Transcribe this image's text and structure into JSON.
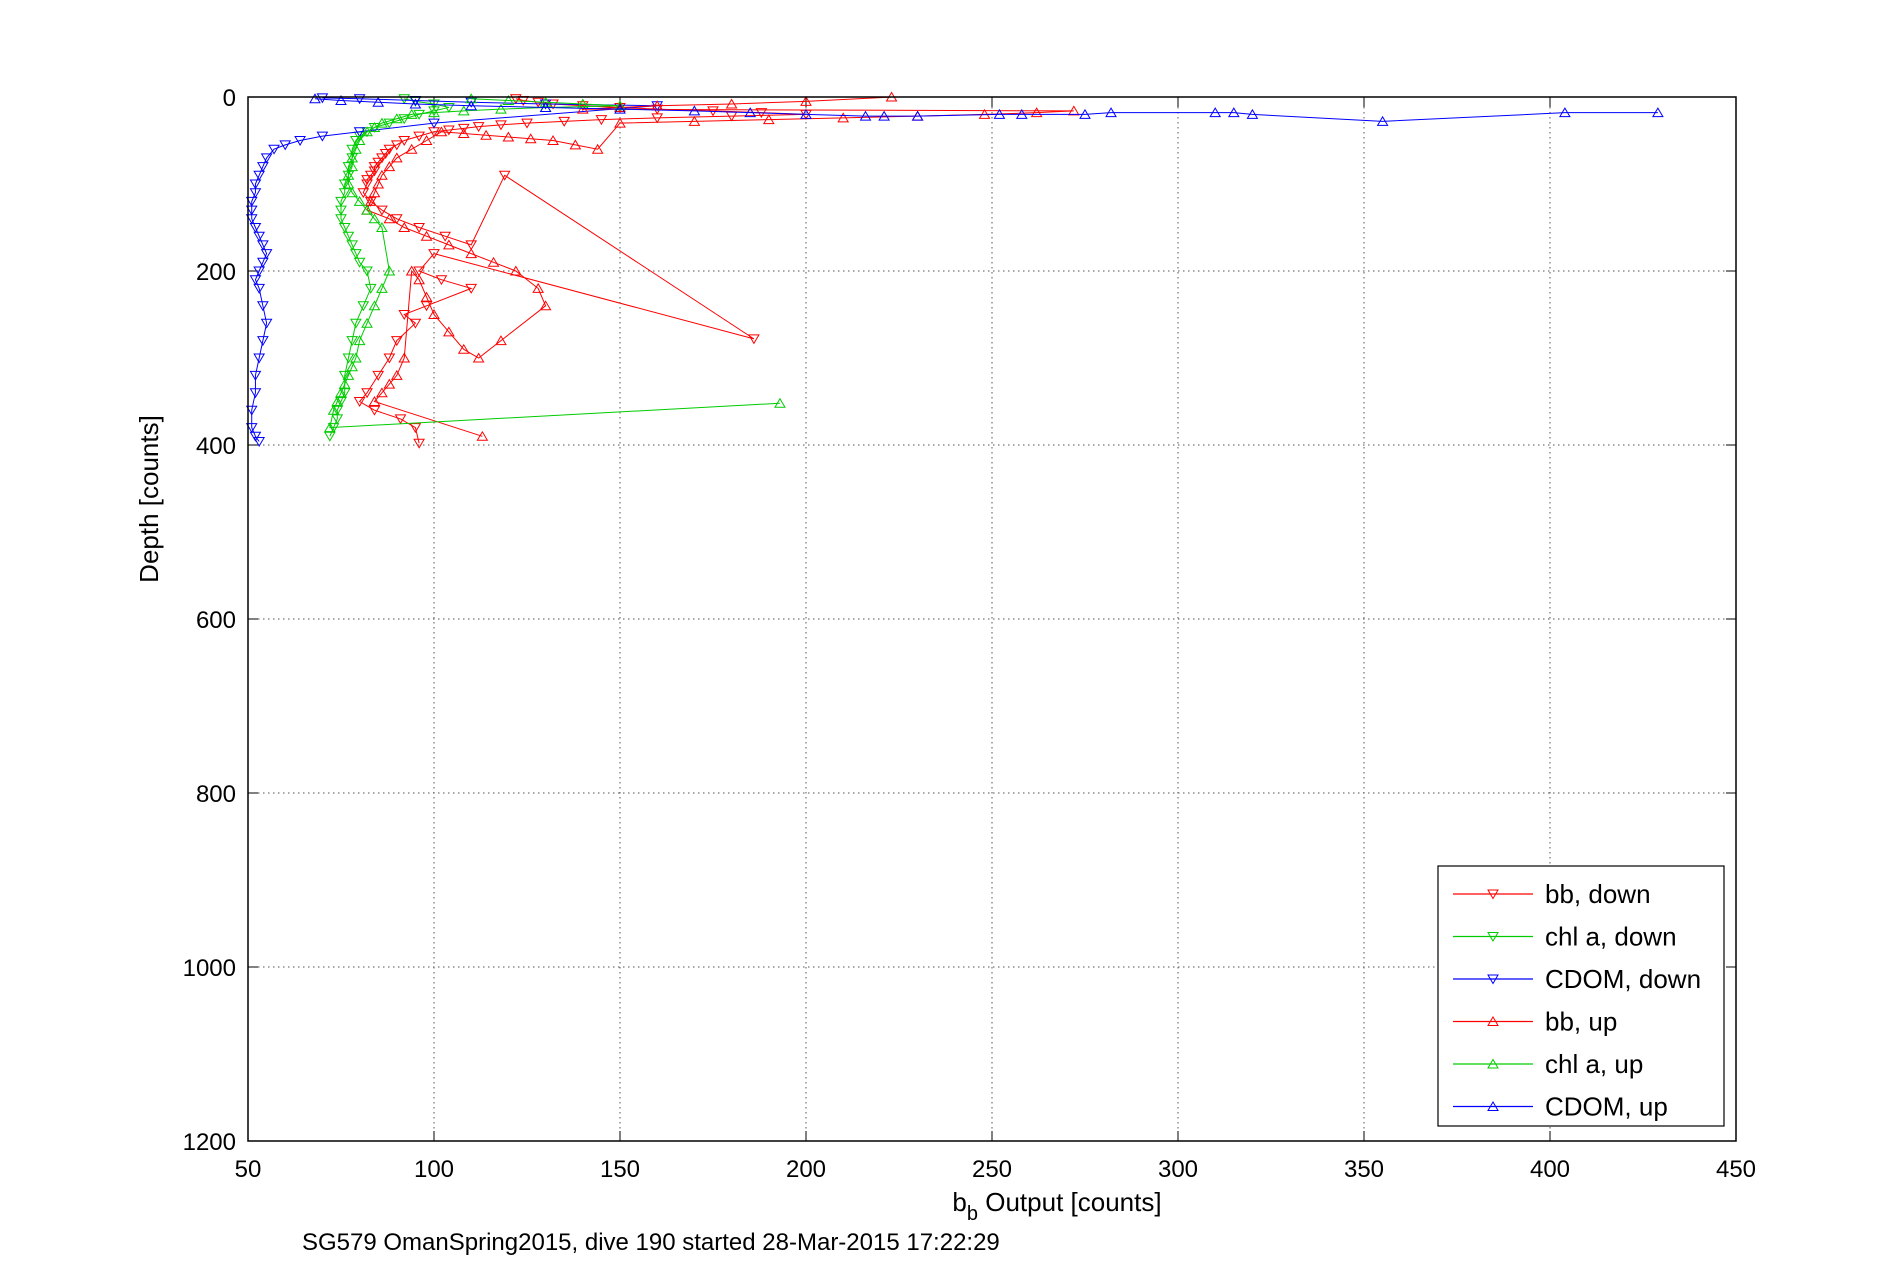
{
  "chart_data": {
    "type": "scatter",
    "xlabel": "b",
    "xlabel_sub": "b",
    "xlabel_rest": " Output [counts]",
    "ylabel": "Depth [counts]",
    "caption": "SG579 OmanSpring2015, dive 190 started 28-Mar-2015 17:22:29",
    "xlim": [
      50,
      450
    ],
    "ylim": [
      0,
      1200
    ],
    "y_reversed": true,
    "grid": true,
    "legend_position": "bottom-right",
    "x_ticks": [
      "50",
      "100",
      "150",
      "200",
      "250",
      "300",
      "350",
      "400",
      "450"
    ],
    "y_ticks": [
      "0",
      "200",
      "400",
      "600",
      "800",
      "1000",
      "1200"
    ],
    "series": [
      {
        "name": "bb, down",
        "color": "#ff0000",
        "marker": "triangle-down",
        "x": [
          122,
          124,
          128,
          132,
          140,
          150,
          160,
          175,
          188,
          200,
          180,
          160,
          145,
          135,
          125,
          118,
          112,
          108,
          104,
          100,
          96,
          92,
          90,
          88,
          87,
          86,
          85,
          84,
          84,
          83,
          82,
          82,
          81,
          83,
          86,
          90,
          96,
          103,
          110,
          119,
          186,
          100,
          96,
          102,
          110,
          98,
          92,
          95,
          90,
          88,
          85,
          82,
          80,
          84,
          91,
          95,
          96
        ],
        "y": [
          2,
          4,
          6,
          8,
          10,
          12,
          14,
          16,
          18,
          20,
          22,
          24,
          26,
          28,
          30,
          32,
          34,
          36,
          38,
          40,
          45,
          50,
          55,
          60,
          65,
          70,
          75,
          80,
          85,
          90,
          95,
          100,
          110,
          120,
          130,
          140,
          150,
          160,
          170,
          90,
          278,
          180,
          200,
          210,
          220,
          240,
          250,
          260,
          280,
          300,
          320,
          340,
          350,
          360,
          370,
          380,
          398
        ]
      },
      {
        "name": "chl a, down",
        "color": "#00cc00",
        "marker": "triangle-down",
        "x": [
          92,
          95,
          100,
          104,
          100,
          96,
          92,
          88,
          84,
          82,
          80,
          79,
          78,
          78,
          77,
          77,
          76,
          76,
          75,
          75,
          75,
          76,
          77,
          78,
          79,
          80,
          82,
          83,
          81,
          79,
          78,
          77,
          76,
          76,
          75,
          74,
          74,
          73,
          72
        ],
        "y": [
          2,
          5,
          8,
          12,
          16,
          20,
          25,
          30,
          35,
          40,
          45,
          50,
          60,
          70,
          80,
          90,
          100,
          110,
          120,
          130,
          140,
          150,
          160,
          170,
          180,
          190,
          200,
          220,
          240,
          260,
          280,
          300,
          320,
          340,
          350,
          360,
          370,
          380,
          390
        ]
      },
      {
        "name": "CDOM, down",
        "color": "#0000ff",
        "marker": "triangle-down",
        "x": [
          70,
          80,
          95,
          110,
          130,
          160,
          100,
          80,
          70,
          64,
          60,
          57,
          55,
          54,
          53,
          52,
          52,
          51,
          51,
          51,
          52,
          53,
          54,
          55,
          54,
          53,
          52,
          53,
          54,
          55,
          54,
          53,
          52,
          52,
          51,
          51,
          52,
          53
        ],
        "y": [
          1,
          2,
          4,
          6,
          8,
          10,
          30,
          40,
          45,
          50,
          55,
          60,
          70,
          80,
          90,
          100,
          110,
          120,
          130,
          140,
          150,
          160,
          170,
          180,
          190,
          200,
          210,
          220,
          240,
          260,
          280,
          300,
          320,
          340,
          360,
          380,
          390,
          396
        ]
      },
      {
        "name": "bb, up",
        "color": "#ff0000",
        "marker": "triangle-up",
        "x": [
          223,
          200,
          180,
          160,
          150,
          140,
          272,
          262,
          248,
          230,
          210,
          190,
          170,
          150,
          144,
          138,
          132,
          126,
          120,
          114,
          108,
          102,
          98,
          94,
          90,
          88,
          86,
          85,
          84,
          83,
          82,
          88,
          92,
          98,
          104,
          110,
          116,
          122,
          128,
          130,
          118,
          112,
          108,
          104,
          100,
          98,
          96,
          94,
          92,
          90,
          88,
          86,
          84,
          113
        ],
        "y": [
          0,
          5,
          8,
          10,
          12,
          14,
          16,
          18,
          20,
          22,
          24,
          26,
          28,
          30,
          60,
          55,
          50,
          48,
          46,
          44,
          42,
          40,
          50,
          60,
          70,
          80,
          90,
          100,
          110,
          120,
          130,
          140,
          150,
          160,
          170,
          180,
          190,
          200,
          220,
          240,
          280,
          300,
          290,
          270,
          250,
          230,
          210,
          200,
          300,
          320,
          330,
          340,
          350,
          390
        ]
      },
      {
        "name": "chl a, up",
        "color": "#00cc00",
        "marker": "triangle-up",
        "x": [
          110,
          120,
          130,
          140,
          150,
          130,
          118,
          108,
          100,
          94,
          90,
          86,
          84,
          82,
          80,
          79,
          78,
          78,
          77,
          77,
          78,
          80,
          82,
          84,
          86,
          88,
          86,
          84,
          82,
          80,
          79,
          78,
          77,
          76,
          75,
          74,
          73,
          72,
          193
        ],
        "y": [
          2,
          4,
          6,
          8,
          10,
          12,
          14,
          16,
          18,
          20,
          25,
          30,
          35,
          40,
          50,
          60,
          70,
          80,
          90,
          100,
          110,
          120,
          130,
          140,
          150,
          200,
          220,
          240,
          260,
          280,
          300,
          310,
          320,
          330,
          340,
          350,
          360,
          380,
          352
        ]
      },
      {
        "name": "CDOM, up",
        "color": "#0000ff",
        "marker": "triangle-up",
        "x": [
          429,
          404,
          355,
          320,
          315,
          310,
          282,
          275,
          258,
          252,
          230,
          221,
          216,
          200,
          185,
          170,
          150,
          130,
          110,
          95,
          85,
          75,
          68
        ],
        "y": [
          18,
          18,
          28,
          20,
          18,
          18,
          18,
          20,
          20,
          20,
          22,
          22,
          22,
          20,
          18,
          16,
          14,
          12,
          10,
          8,
          6,
          4,
          2
        ]
      }
    ]
  }
}
